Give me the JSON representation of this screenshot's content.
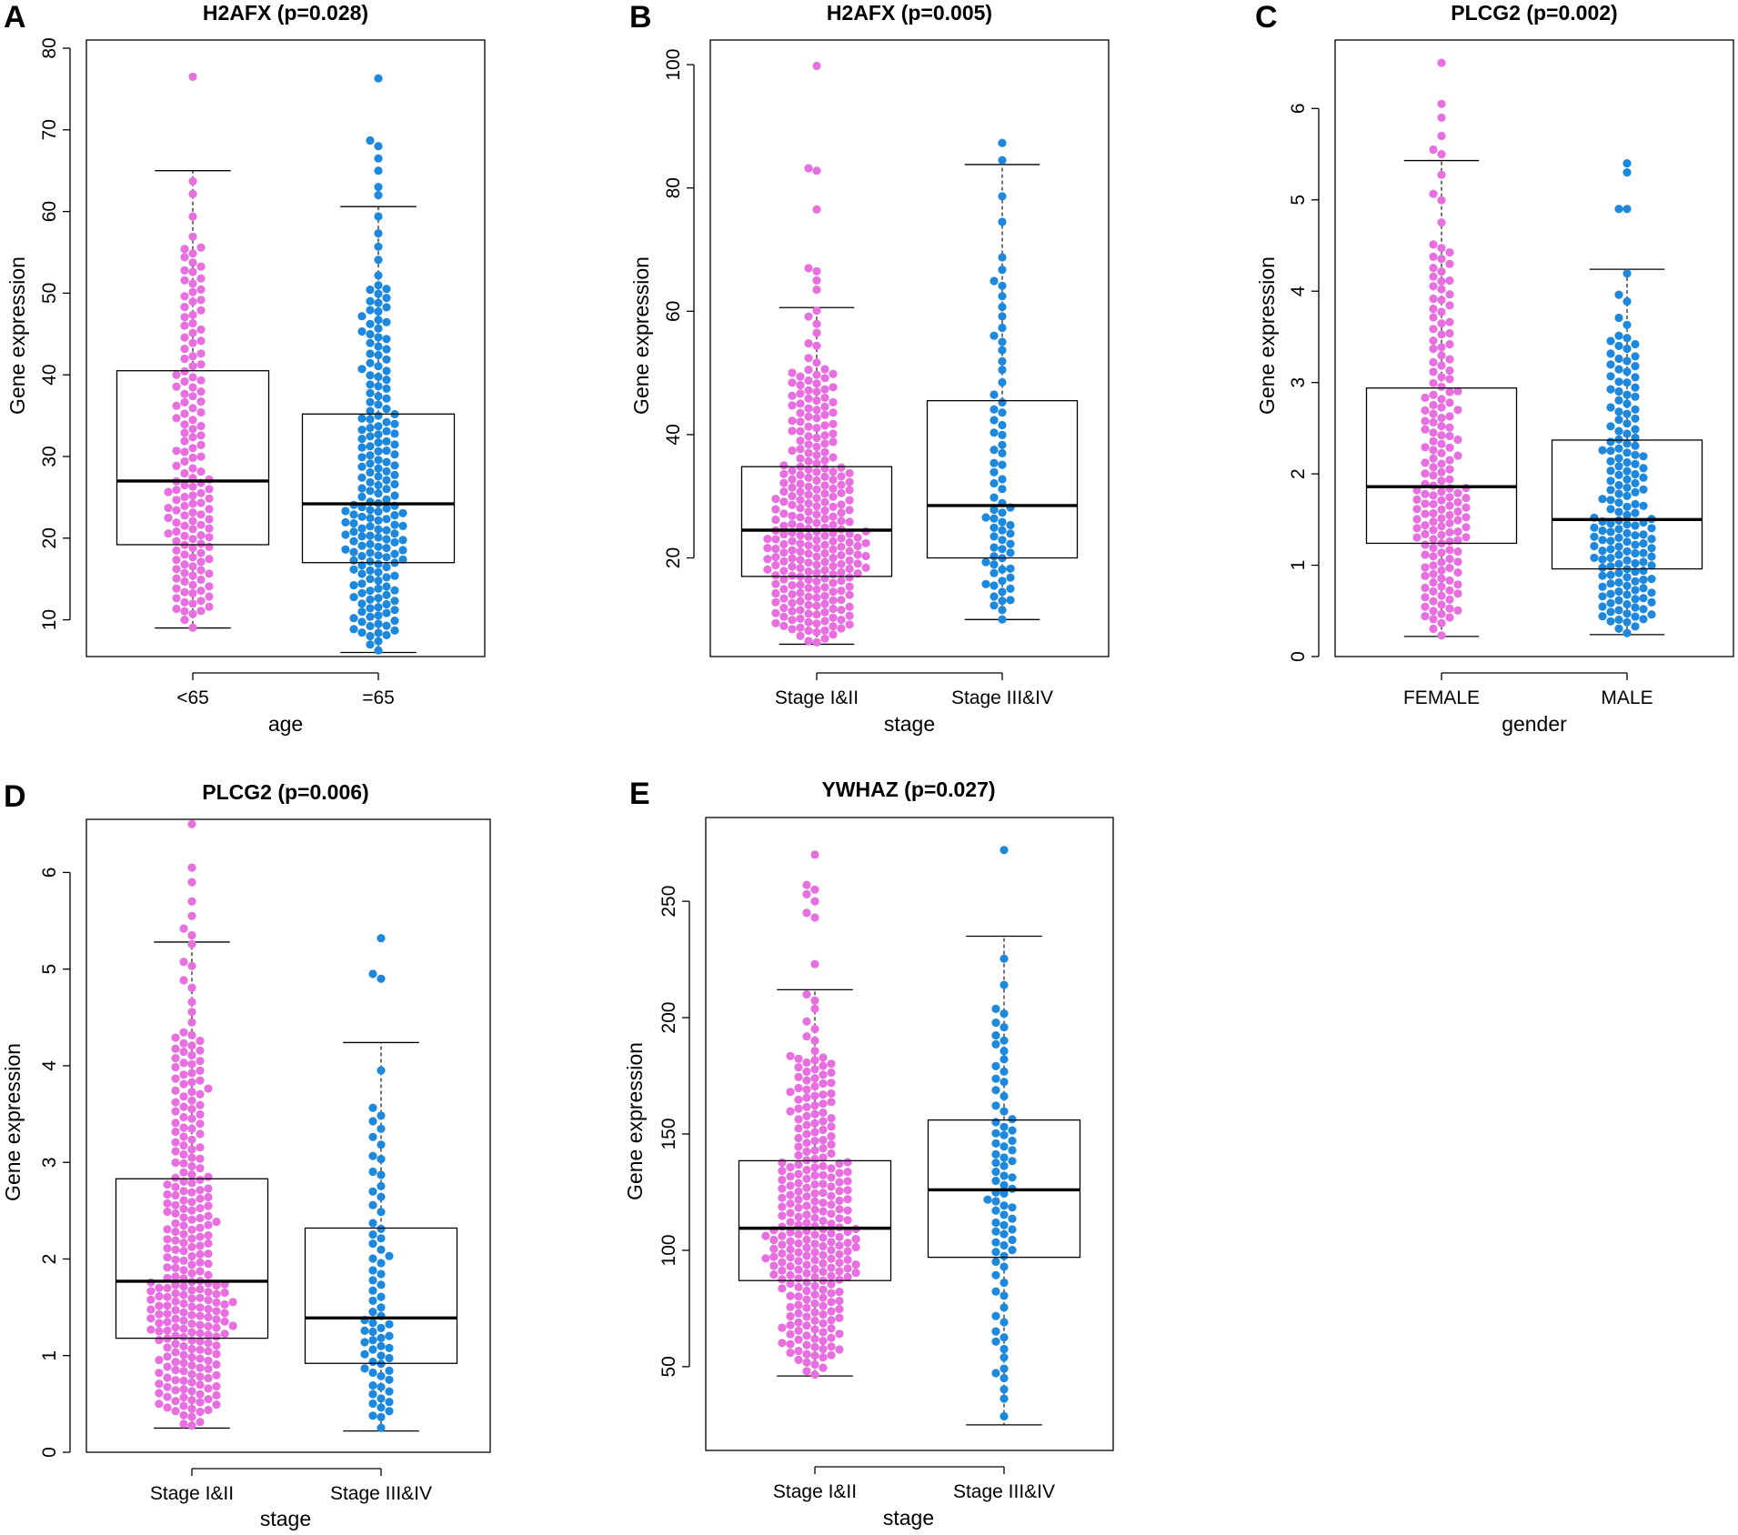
{
  "figure_colors": {
    "group1": "#e86fe0",
    "group2": "#1e88dc",
    "box": "#000000"
  },
  "chart_data": [
    {
      "panel": "A",
      "type": "box-beeswarm",
      "title": "H2AFX (p=0.028)",
      "xlabel": "age",
      "ylabel": "Gene expression",
      "ylim": [
        5.5,
        81
      ],
      "yticks": [
        10,
        20,
        30,
        40,
        50,
        60,
        70,
        80
      ],
      "groups": [
        {
          "label": "<65",
          "n": 150,
          "color": "#e86fe0",
          "stats": {
            "min": 9,
            "q1": 19.2,
            "median": 27,
            "q3": 40.5,
            "max": 65
          },
          "outliers": [
            76.5
          ]
        },
        {
          "label": "=65",
          "n": 190,
          "color": "#1e88dc",
          "stats": {
            "min": 6,
            "q1": 17,
            "median": 24.2,
            "q3": 35.2,
            "max": 60.6
          },
          "outliers": [
            62,
            63,
            65,
            66.5,
            68,
            68.7,
            76.3
          ]
        }
      ]
    },
    {
      "panel": "B",
      "type": "box-beeswarm",
      "title": "H2AFX (p=0.005)",
      "xlabel": "stage",
      "ylabel": "Gene expression",
      "ylim": [
        4,
        104
      ],
      "yticks": [
        20,
        40,
        60,
        80,
        100
      ],
      "groups": [
        {
          "label": "Stage I&II",
          "n": 270,
          "color": "#e86fe0",
          "stats": {
            "min": 6,
            "q1": 17,
            "median": 24.5,
            "q3": 34.8,
            "max": 60.6
          },
          "outliers": [
            63.5,
            65,
            66.5,
            67,
            76.5,
            82.8,
            83.2,
            99.8
          ]
        },
        {
          "label": "Stage III&IV",
          "n": 70,
          "color": "#1e88dc",
          "stats": {
            "min": 10,
            "q1": 20,
            "median": 28.5,
            "q3": 45.5,
            "max": 83.8
          },
          "outliers": [
            84.5,
            87.3
          ]
        }
      ]
    },
    {
      "panel": "C",
      "type": "box-beeswarm",
      "title": "PLCG2 (p=0.002)",
      "xlabel": "gender",
      "ylabel": "Gene expression",
      "ylim": [
        0,
        6.75
      ],
      "yticks": [
        0,
        1,
        2,
        3,
        4,
        5,
        6
      ],
      "groups": [
        {
          "label": "FEMALE",
          "n": 170,
          "color": "#e86fe0",
          "stats": {
            "min": 0.22,
            "q1": 1.24,
            "median": 1.86,
            "q3": 2.94,
            "max": 5.43
          },
          "outliers": [
            5.5,
            5.55,
            5.7,
            5.9,
            6.05,
            6.5
          ]
        },
        {
          "label": "MALE",
          "n": 170,
          "color": "#1e88dc",
          "stats": {
            "min": 0.24,
            "q1": 0.96,
            "median": 1.5,
            "q3": 2.37,
            "max": 4.24
          },
          "outliers": [
            4.9,
            4.9,
            5.3,
            5.4
          ]
        }
      ]
    },
    {
      "panel": "D",
      "type": "box-beeswarm",
      "title": "PLCG2 (p=0.006)",
      "xlabel": "stage",
      "ylabel": "Gene expression",
      "ylim": [
        0,
        6.55
      ],
      "yticks": [
        0,
        1,
        2,
        3,
        4,
        5,
        6
      ],
      "groups": [
        {
          "label": "Stage I&II",
          "n": 270,
          "color": "#e86fe0",
          "stats": {
            "min": 0.25,
            "q1": 1.18,
            "median": 1.77,
            "q3": 2.83,
            "max": 5.28
          },
          "outliers": [
            5.35,
            5.42,
            5.55,
            5.7,
            5.9,
            6.05,
            6.5
          ]
        },
        {
          "label": "Stage III&IV",
          "n": 70,
          "color": "#1e88dc",
          "stats": {
            "min": 0.22,
            "q1": 0.92,
            "median": 1.39,
            "q3": 2.32,
            "max": 4.24
          },
          "outliers": [
            4.9,
            4.95,
            5.32
          ]
        }
      ]
    },
    {
      "panel": "E",
      "type": "box-beeswarm",
      "title": "YWHAZ (p=0.027)",
      "xlabel": "stage",
      "ylabel": "Gene expression",
      "ylim": [
        14,
        286
      ],
      "yticks": [
        50,
        100,
        150,
        200,
        250
      ],
      "groups": [
        {
          "label": "Stage I&II",
          "n": 270,
          "color": "#e86fe0",
          "stats": {
            "min": 46,
            "q1": 87,
            "median": 109.5,
            "q3": 138.5,
            "max": 212
          },
          "outliers": [
            223,
            243,
            245,
            250,
            253,
            255,
            257,
            270
          ]
        },
        {
          "label": "Stage III&IV",
          "n": 80,
          "color": "#1e88dc",
          "stats": {
            "min": 25,
            "q1": 97,
            "median": 126,
            "q3": 156,
            "max": 235
          },
          "outliers": [
            272
          ]
        }
      ]
    }
  ]
}
